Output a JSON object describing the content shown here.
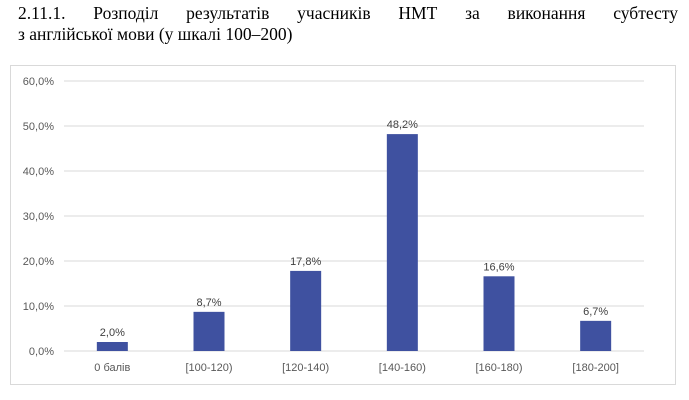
{
  "caption": {
    "line1": "2.11.1. Розподіл результатів учасників НМТ за виконання субтесту",
    "line2": "з англійської мови (у шкалі 100–200)"
  },
  "chart_data": {
    "type": "bar",
    "title": "",
    "xlabel": "",
    "ylabel": "",
    "categories": [
      "0 балів",
      "[100-120)",
      "[120-140)",
      "[140-160)",
      "[160-180)",
      "[180-200]"
    ],
    "values": [
      2.0,
      8.7,
      17.8,
      48.2,
      16.6,
      6.7
    ],
    "data_labels": [
      "2,0%",
      "8,7%",
      "17,8%",
      "48,2%",
      "16,6%",
      "6,7%"
    ],
    "ylim": [
      0,
      60
    ],
    "yticks": [
      0,
      10,
      20,
      30,
      40,
      50,
      60
    ],
    "ytick_labels": [
      "0,0%",
      "10,0%",
      "20,0%",
      "30,0%",
      "40,0%",
      "50,0%",
      "60,0%"
    ],
    "grid": true,
    "legend": "none",
    "bar_color": "#3f51a0",
    "grid_color": "#d9d9d9"
  }
}
